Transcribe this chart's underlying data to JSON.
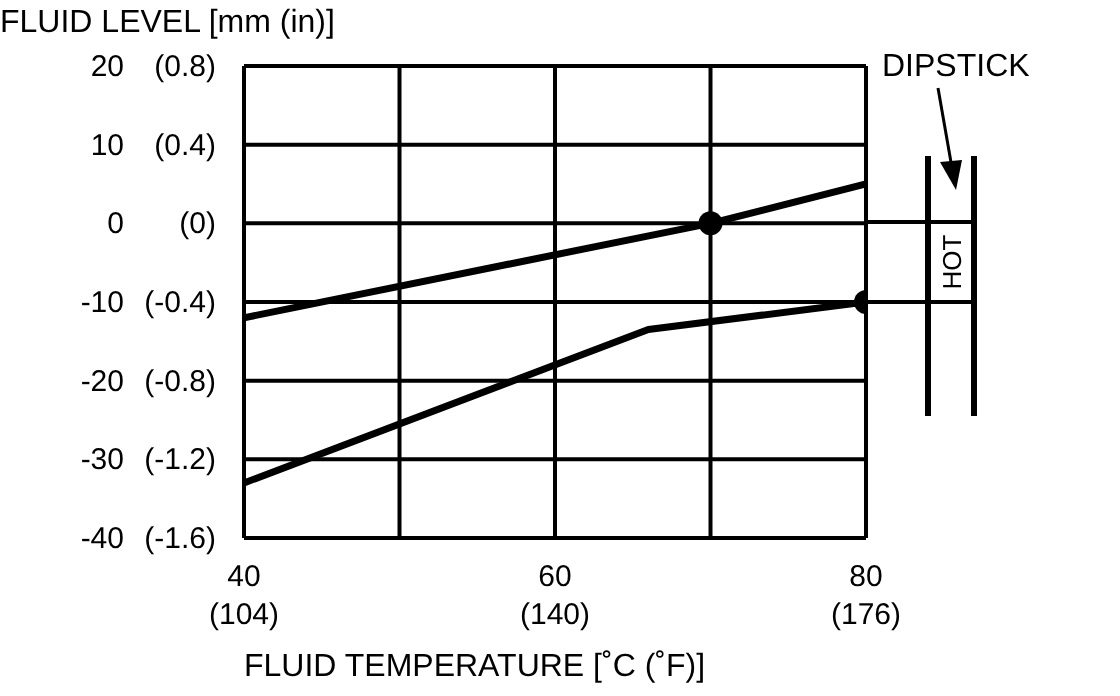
{
  "chart_data": {
    "type": "line",
    "title": "FLUID LEVEL [mm (in)]",
    "xlabel": "FLUID TEMPERATURE [˚C (˚F)]",
    "xlim": [
      40,
      80
    ],
    "xticks": [
      40,
      {
        "value": 50,
        "label": null
      },
      60,
      {
        "value": 70,
        "label": null
      },
      80
    ],
    "x2lim": [
      104,
      176
    ],
    "x2ticks": [
      {
        "value": 104,
        "label": "(104)"
      },
      {
        "value": 140,
        "label": "(140)"
      },
      {
        "value": 176,
        "label": "(176)"
      }
    ],
    "ylim": [
      -40,
      20
    ],
    "yticks": [
      -40,
      -30,
      -20,
      -10,
      0,
      10,
      20
    ],
    "y2lim": [
      -1.6,
      0.8
    ],
    "y2ticks": [
      {
        "value": -1.6,
        "label": "(-1.6)"
      },
      {
        "value": -1.2,
        "label": "(-1.2)"
      },
      {
        "value": -0.8,
        "label": "(-0.8)"
      },
      {
        "value": -0.4,
        "label": "(-0.4)"
      },
      {
        "value": 0,
        "label": "(0)"
      },
      {
        "value": 0.4,
        "label": "(0.4)"
      },
      {
        "value": 0.8,
        "label": "(0.8)"
      }
    ],
    "grid": true,
    "series": [
      {
        "color": "#000000",
        "x": [
          40,
          70,
          80
        ],
        "values": [
          -12,
          0,
          5
        ]
      },
      {
        "color": "#000000",
        "x": [
          40,
          66,
          80
        ],
        "values": [
          -33,
          -13.5,
          -10
        ]
      },
      {
        "type": "scatter",
        "color": "#000000",
        "x": [
          70,
          80
        ],
        "values": [
          0,
          -10
        ]
      }
    ],
    "annotations": [
      "DIPSTICK",
      "HOT"
    ]
  }
}
